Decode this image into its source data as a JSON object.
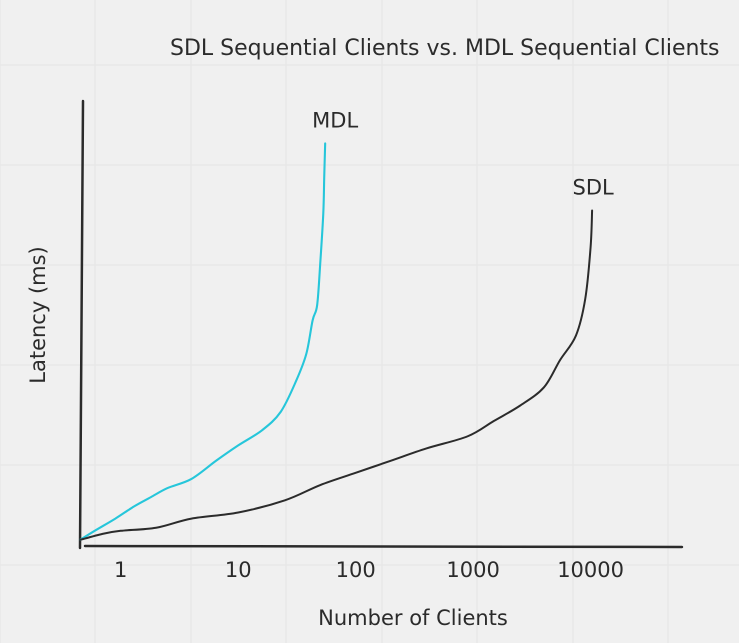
{
  "chart_data": {
    "type": "line",
    "title": "SDL Sequential Clients vs. MDL Sequential Clients",
    "xlabel": "Number of Clients",
    "ylabel": "Latency (ms)",
    "x_scale": "log",
    "xlim": [
      0.45,
      60000
    ],
    "x_ticks": [
      1,
      10,
      100,
      1000,
      10000
    ],
    "x_tick_labels": [
      "1",
      "10",
      "100",
      "1000",
      "10000"
    ],
    "y_ticks_labeled": false,
    "grid": true,
    "legend": "none",
    "series": [
      {
        "name": "MDL",
        "color": "#26c6da",
        "points": [
          [
            0.45,
            0.01
          ],
          [
            0.6,
            0.04
          ],
          [
            0.9,
            0.08
          ],
          [
            1.3,
            0.12
          ],
          [
            1.8,
            0.15
          ],
          [
            2.5,
            0.18
          ],
          [
            4.0,
            0.21
          ],
          [
            6.5,
            0.27
          ],
          [
            10,
            0.32
          ],
          [
            16,
            0.37
          ],
          [
            23,
            0.43
          ],
          [
            31,
            0.53
          ],
          [
            38,
            0.62
          ],
          [
            43,
            0.73
          ],
          [
            47,
            0.78
          ],
          [
            50,
            0.92
          ],
          [
            53,
            1.08
          ],
          [
            54,
            1.2
          ],
          [
            55,
            1.31
          ]
        ]
      },
      {
        "name": "SDL",
        "color": "#2b2b2b",
        "points": [
          [
            0.45,
            0.01
          ],
          [
            0.7,
            0.03
          ],
          [
            1.0,
            0.04
          ],
          [
            2.0,
            0.05
          ],
          [
            4.0,
            0.08
          ],
          [
            10,
            0.1
          ],
          [
            25,
            0.14
          ],
          [
            50,
            0.19
          ],
          [
            100,
            0.23
          ],
          [
            200,
            0.27
          ],
          [
            400,
            0.31
          ],
          [
            900,
            0.35
          ],
          [
            1500,
            0.4
          ],
          [
            2500,
            0.45
          ],
          [
            4000,
            0.51
          ],
          [
            5500,
            0.6
          ],
          [
            7500,
            0.68
          ],
          [
            9000,
            0.8
          ],
          [
            10000,
            0.97
          ],
          [
            10300,
            1.09
          ]
        ]
      }
    ]
  }
}
